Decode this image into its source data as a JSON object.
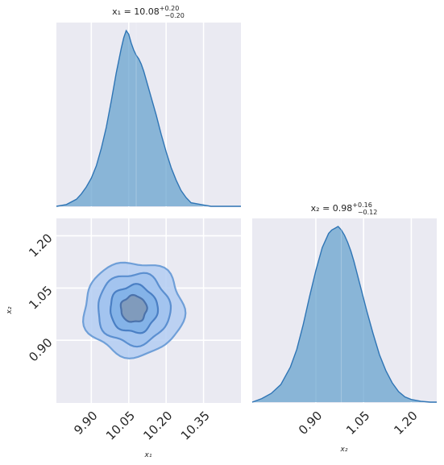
{
  "chart_data": [
    {
      "type": "area",
      "panel": "x1-marginal",
      "title_main": "x₁ = 10.08",
      "title_sup": "+0.20",
      "title_sub": "−0.20",
      "xlim": [
        9.76,
        10.5
      ],
      "x_ticks": [
        9.9,
        10.05,
        10.2,
        10.35
      ],
      "median": 10.08,
      "x": [
        9.76,
        9.8,
        9.84,
        9.86,
        9.88,
        9.9,
        9.92,
        9.94,
        9.96,
        9.98,
        10.0,
        10.02,
        10.03,
        10.04,
        10.05,
        10.06,
        10.07,
        10.08,
        10.09,
        10.1,
        10.11,
        10.12,
        10.14,
        10.16,
        10.18,
        10.2,
        10.22,
        10.24,
        10.26,
        10.28,
        10.3,
        10.34,
        10.38,
        10.42,
        10.46,
        10.5
      ],
      "density": [
        0.0,
        0.01,
        0.04,
        0.07,
        0.11,
        0.16,
        0.23,
        0.33,
        0.45,
        0.6,
        0.76,
        0.9,
        0.96,
        1.0,
        0.98,
        0.93,
        0.89,
        0.86,
        0.84,
        0.81,
        0.77,
        0.72,
        0.62,
        0.52,
        0.41,
        0.31,
        0.22,
        0.15,
        0.09,
        0.05,
        0.02,
        0.01,
        0.0,
        0.0,
        0.0,
        0.0
      ]
    },
    {
      "type": "area",
      "panel": "x2-marginal",
      "title_main": "x₂ = 0.98",
      "title_sup": "+0.16",
      "title_sub": "−0.12",
      "xlim": [
        0.7,
        1.28
      ],
      "x_ticks": [
        0.9,
        1.05,
        1.2
      ],
      "median": 0.98,
      "x": [
        0.7,
        0.73,
        0.76,
        0.79,
        0.82,
        0.84,
        0.86,
        0.88,
        0.9,
        0.92,
        0.94,
        0.95,
        0.96,
        0.97,
        0.98,
        0.99,
        1.0,
        1.01,
        1.02,
        1.04,
        1.06,
        1.08,
        1.1,
        1.12,
        1.14,
        1.16,
        1.18,
        1.2,
        1.23,
        1.26,
        1.28
      ],
      "density": [
        0.0,
        0.02,
        0.05,
        0.1,
        0.2,
        0.3,
        0.44,
        0.6,
        0.75,
        0.88,
        0.96,
        0.98,
        0.99,
        1.0,
        0.98,
        0.95,
        0.91,
        0.86,
        0.8,
        0.66,
        0.52,
        0.39,
        0.27,
        0.18,
        0.11,
        0.06,
        0.03,
        0.015,
        0.005,
        0.0,
        0.0
      ]
    },
    {
      "type": "heatmap",
      "panel": "x1-x2-joint",
      "xlabel": "x₁",
      "ylabel": "x₂",
      "xlim": [
        9.76,
        10.5
      ],
      "ylim": [
        0.72,
        1.25
      ],
      "x_ticks": [
        9.9,
        10.05,
        10.2,
        10.35
      ],
      "y_ticks": [
        0.9,
        1.05,
        1.2
      ],
      "center": [
        10.07,
        0.99
      ],
      "contours": [
        {
          "level": "outer",
          "rx": 0.2,
          "ry": 0.135,
          "fill": "#b3cdf2",
          "stroke": "#6f9fd8"
        },
        {
          "level": "2",
          "rx": 0.145,
          "ry": 0.102,
          "fill": "#9fc2ef",
          "stroke": "#5b8fd0"
        },
        {
          "level": "3",
          "rx": 0.095,
          "ry": 0.068,
          "fill": "#7fb0e6",
          "stroke": "#4a7fc4"
        },
        {
          "level": "inner",
          "rx": 0.052,
          "ry": 0.038,
          "fill": "#7f97b4",
          "stroke": "#4b72ab"
        }
      ]
    }
  ],
  "bottom_axes": {
    "x1_label": "x₁",
    "x2_label": "x₂"
  }
}
